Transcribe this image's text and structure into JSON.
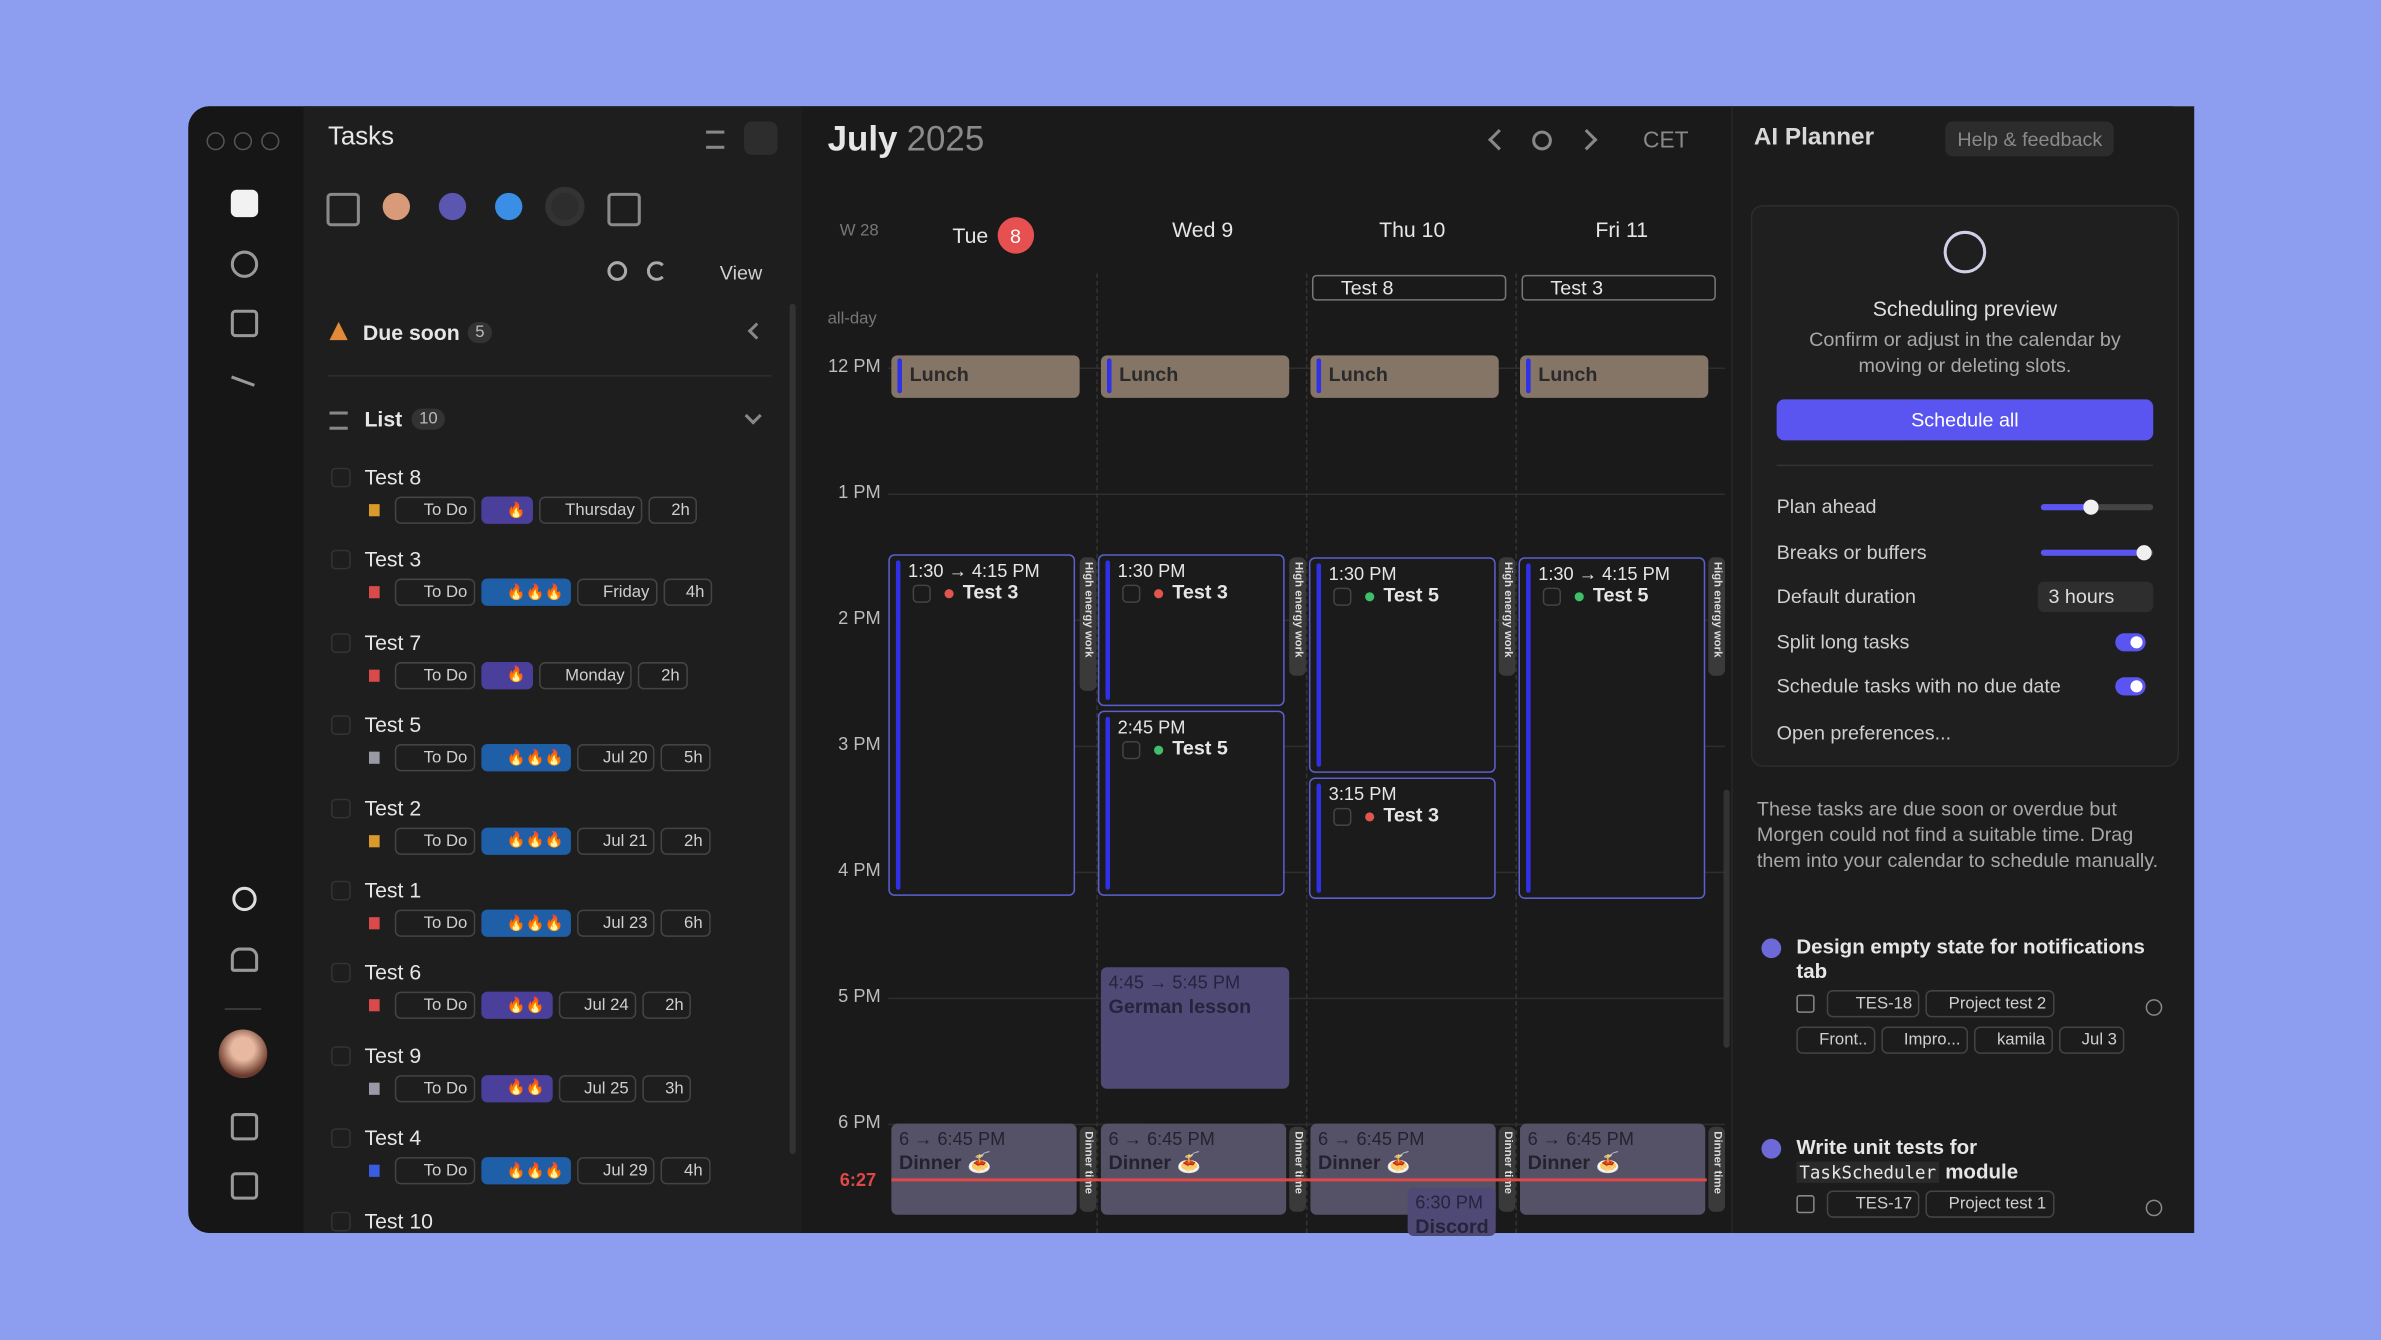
{
  "tasks_panel": {
    "title": "Tasks",
    "view_button": "View",
    "due_soon": {
      "label": "Due soon",
      "count": "5"
    },
    "list": {
      "label": "List",
      "count": "10"
    },
    "tasks": [
      {
        "name": "Test 8",
        "flag": "#d99a2b",
        "status": "To Do",
        "energy": "🔥",
        "energy_color": "#4b3f9c",
        "due": "Thursday",
        "duration": "2h"
      },
      {
        "name": "Test 3",
        "flag": "#d94a4a",
        "status": "To Do",
        "energy": "🔥🔥🔥",
        "energy_color": "#1f5fa8",
        "due": "Friday",
        "duration": "4h"
      },
      {
        "name": "Test 7",
        "flag": "#d94a4a",
        "status": "To Do",
        "energy": "🔥",
        "energy_color": "#4b3f9c",
        "due": "Monday",
        "duration": "2h"
      },
      {
        "name": "Test 5",
        "flag": "#9a9aa6",
        "status": "To Do",
        "energy": "🔥🔥🔥",
        "energy_color": "#1f5fa8",
        "due": "Jul 20",
        "duration": "5h"
      },
      {
        "name": "Test 2",
        "flag": "#d99a2b",
        "status": "To Do",
        "energy": "🔥🔥🔥",
        "energy_color": "#1f5fa8",
        "due": "Jul 21",
        "duration": "2h"
      },
      {
        "name": "Test 1",
        "flag": "#d94a4a",
        "status": "To Do",
        "energy": "🔥🔥🔥",
        "energy_color": "#1f5fa8",
        "due": "Jul 23",
        "duration": "6h"
      },
      {
        "name": "Test 6",
        "flag": "#d94a4a",
        "status": "To Do",
        "energy": "🔥🔥",
        "energy_color": "#4b3f9c",
        "due": "Jul 24",
        "duration": "2h"
      },
      {
        "name": "Test 9",
        "flag": "#9a9aa6",
        "status": "To Do",
        "energy": "🔥🔥",
        "energy_color": "#4b3f9c",
        "due": "Jul 25",
        "duration": "3h"
      },
      {
        "name": "Test 4",
        "flag": "#3a5ce0",
        "status": "To Do",
        "energy": "🔥🔥🔥",
        "energy_color": "#1f5fa8",
        "due": "Jul 29",
        "duration": "4h"
      },
      {
        "name": "Test 10"
      }
    ]
  },
  "calendar": {
    "month": "July",
    "year": "2025",
    "timezone": "CET",
    "week": "W 28",
    "all_day_label": "all-day",
    "now": "6:27",
    "hours": [
      "12 PM",
      "1 PM",
      "2 PM",
      "3 PM",
      "4 PM",
      "5 PM",
      "6 PM"
    ],
    "days": [
      {
        "label": "Tue",
        "badge": "8",
        "events": [
          {
            "kind": "lunch",
            "title": "Lunch"
          },
          {
            "kind": "task",
            "time": "1:30 → 4:15 PM",
            "title": "Test 3",
            "dot": "#e0564f"
          },
          {
            "kind": "strip",
            "title": "High energy work"
          },
          {
            "kind": "dinner",
            "time": "6 → 6:45 PM",
            "title": "Dinner 🍝"
          },
          {
            "kind": "strip",
            "title": "Dinner time"
          }
        ]
      },
      {
        "label": "Wed 9",
        "events": [
          {
            "kind": "lunch",
            "title": "Lunch"
          },
          {
            "kind": "task",
            "time": "1:30 PM",
            "title": "Test 3",
            "dot": "#e0564f"
          },
          {
            "kind": "task",
            "time": "2:45 PM",
            "title": "Test 5",
            "dot": "#3fbf6a"
          },
          {
            "kind": "strip",
            "title": "High energy work"
          },
          {
            "kind": "lesson",
            "time": "4:45 → 5:45 PM",
            "title": "German lesson"
          },
          {
            "kind": "dinner",
            "time": "6 → 6:45 PM",
            "title": "Dinner 🍝"
          },
          {
            "kind": "strip",
            "title": "Dinner time"
          }
        ]
      },
      {
        "label": "Thu 10",
        "all_day": "Test 8",
        "events": [
          {
            "kind": "lunch",
            "title": "Lunch"
          },
          {
            "kind": "task",
            "time": "1:30 PM",
            "title": "Test 5",
            "dot": "#3fbf6a"
          },
          {
            "kind": "task",
            "time": "3:15 PM",
            "title": "Test 3",
            "dot": "#e0564f"
          },
          {
            "kind": "strip",
            "title": "High energy work"
          },
          {
            "kind": "dinner",
            "time": "6 → 6:45 PM",
            "title": "Dinner 🍝"
          },
          {
            "kind": "strip",
            "title": "Dinner time"
          },
          {
            "kind": "lesson",
            "time": "6:30 PM",
            "title": "Discord"
          }
        ]
      },
      {
        "label": "Fri 11",
        "all_day": "Test 3",
        "events": [
          {
            "kind": "lunch",
            "title": "Lunch"
          },
          {
            "kind": "task",
            "time": "1:30 → 4:15 PM",
            "title": "Test 5",
            "dot": "#3fbf6a"
          },
          {
            "kind": "strip",
            "title": "High energy work"
          },
          {
            "kind": "dinner",
            "time": "6 → 6:45 PM",
            "title": "Dinner 🍝"
          },
          {
            "kind": "strip",
            "title": "Dinner time"
          }
        ]
      }
    ]
  },
  "ai_planner": {
    "title": "AI Planner",
    "help": "Help & feedback",
    "preview": {
      "title": "Scheduling preview",
      "text": "Confirm or adjust in the calendar by moving or deleting slots.",
      "button": "Schedule all"
    },
    "settings": [
      {
        "label": "Plan ahead",
        "control": "slider"
      },
      {
        "label": "Breaks or buffers",
        "control": "slider"
      },
      {
        "label": "Default duration",
        "control": "select",
        "value": "3 hours"
      },
      {
        "label": "Split long tasks",
        "control": "toggle"
      },
      {
        "label": "Schedule tasks with no due date",
        "control": "toggle"
      }
    ],
    "open_preferences": "Open preferences...",
    "note": "These tasks are due soon or overdue but Morgen could not find a suitable time. Drag them into your calendar to schedule manually.",
    "unscheduled": [
      {
        "title": "Design empty state for notifications tab",
        "tags": [
          "TES-18",
          "Project test 2",
          "Front..",
          "Impro...",
          "kamila",
          "Jul 3"
        ]
      },
      {
        "title": "Write unit tests for",
        "code": "TaskScheduler",
        "title_end": "module",
        "tags": [
          "TES-17",
          "Project test 1"
        ]
      }
    ]
  }
}
